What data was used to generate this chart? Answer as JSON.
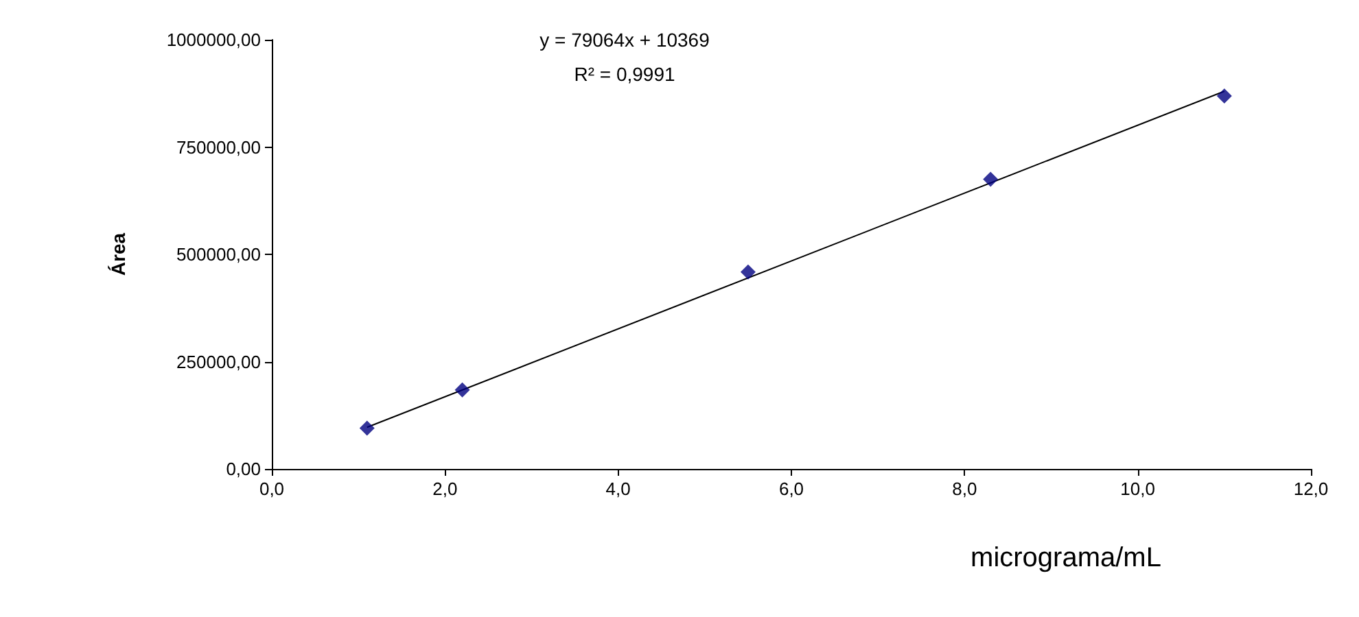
{
  "chart_data": {
    "type": "scatter",
    "xlabel": "micrograma/mL",
    "ylabel": "Área",
    "x": [
      1.1,
      2.2,
      5.5,
      8.3,
      11.0
    ],
    "series": [
      {
        "color": "#000080",
        "marker": "diamond",
        "values": [
          95000,
          184000,
          459000,
          675000,
          869000
        ]
      },
      {
        "type": "line",
        "color": "#000000",
        "marker": "none",
        "x": [
          1.1,
          11.0
        ],
        "values": [
          97000,
          880000
        ]
      }
    ],
    "xlim": [
      0,
      12
    ],
    "xticks": [
      {
        "value": 0,
        "label": "0,0"
      },
      {
        "value": 2,
        "label": "2,0"
      },
      {
        "value": 4,
        "label": "4,0"
      },
      {
        "value": 6,
        "label": "6,0"
      },
      {
        "value": 8,
        "label": "8,0"
      },
      {
        "value": 10,
        "label": "10,0"
      },
      {
        "value": 12,
        "label": "12,0"
      }
    ],
    "ylim": [
      0,
      1000000
    ],
    "yticks": [
      {
        "value": 0,
        "label": "0,00"
      },
      {
        "value": 250000,
        "label": "250000,00"
      },
      {
        "value": 500000,
        "label": "500000,00"
      },
      {
        "value": 750000,
        "label": "750000,00"
      },
      {
        "value": 1000000,
        "label": "1000000,00"
      }
    ],
    "annotations": [
      "y = 79064x + 10369",
      "R² = 0,9991"
    ],
    "grid": false
  }
}
